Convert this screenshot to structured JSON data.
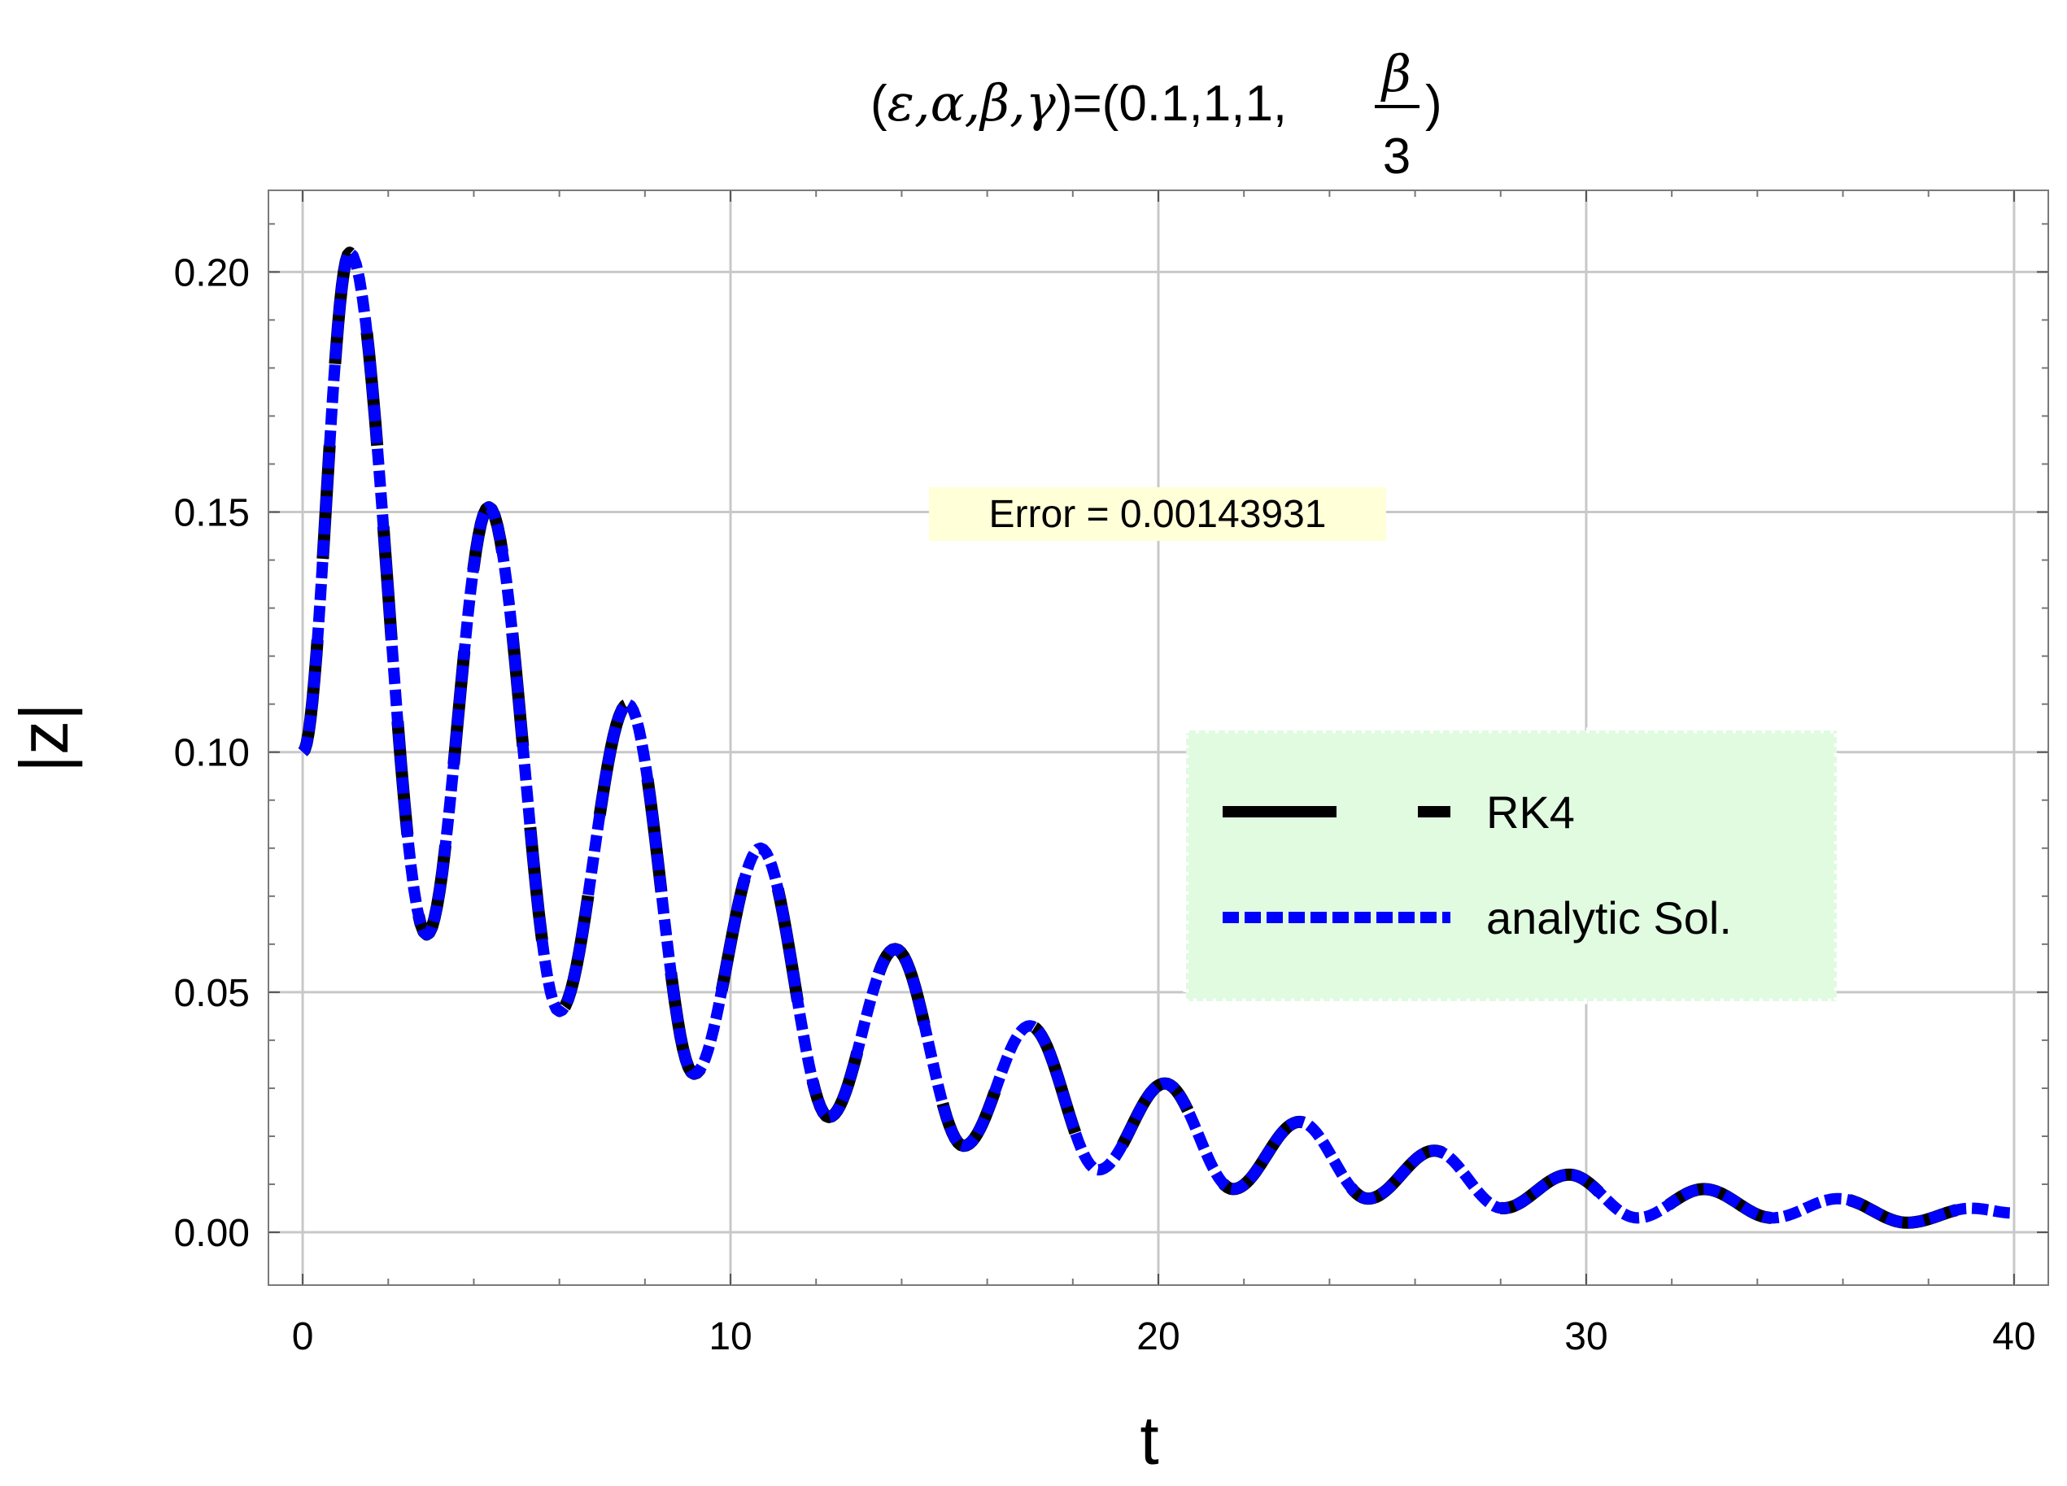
{
  "chart_data": {
    "type": "line",
    "title": {
      "prefix": "(",
      "symbols": "ε,α,β,γ",
      "middle": ")=(0.1,1,1,",
      "fraction_numerator": "β",
      "fraction_denominator": "3",
      "suffix": ")"
    },
    "xlabel": "t",
    "ylabel": "|z|",
    "xlim": [
      -0.8,
      40.8
    ],
    "ylim": [
      -0.011,
      0.217
    ],
    "xticks": [
      0,
      10,
      20,
      30,
      40
    ],
    "xtick_labels": [
      "0",
      "10",
      "20",
      "30",
      "40"
    ],
    "yticks": [
      0.0,
      0.05,
      0.1,
      0.15,
      0.2
    ],
    "ytick_labels": [
      "0.00",
      "0.05",
      "0.10",
      "0.15",
      "0.20"
    ],
    "grid": true,
    "legend_position": "right",
    "annotation": "Error = 0.00143931",
    "series": [
      {
        "name": "RK4",
        "style": "long-dash",
        "color": "#000000",
        "x": [
          0,
          1.1,
          2.9,
          4.35,
          6.0,
          7.6,
          9.15,
          10.7,
          12.3,
          13.85,
          15.45,
          17.0,
          18.6,
          20.15,
          21.75,
          23.3,
          24.9,
          26.45,
          28.05,
          29.6,
          31.2,
          32.75,
          34.35,
          35.9,
          37.5,
          39.0,
          40.0
        ],
        "y": [
          0.1,
          0.204,
          0.062,
          0.151,
          0.046,
          0.11,
          0.033,
          0.08,
          0.024,
          0.059,
          0.018,
          0.043,
          0.013,
          0.031,
          0.009,
          0.023,
          0.007,
          0.017,
          0.005,
          0.012,
          0.003,
          0.009,
          0.003,
          0.007,
          0.002,
          0.005,
          0.004
        ]
      },
      {
        "name": "analytic Sol.",
        "style": "dotted",
        "color": "#0000ff",
        "x": [
          0,
          1.1,
          2.9,
          4.35,
          6.0,
          7.6,
          9.15,
          10.7,
          12.3,
          13.85,
          15.45,
          17.0,
          18.6,
          20.15,
          21.75,
          23.3,
          24.9,
          26.45,
          28.05,
          29.6,
          31.2,
          32.75,
          34.35,
          35.9,
          37.5,
          39.0,
          40.0
        ],
        "y": [
          0.1,
          0.204,
          0.062,
          0.151,
          0.046,
          0.11,
          0.033,
          0.08,
          0.024,
          0.059,
          0.018,
          0.043,
          0.013,
          0.031,
          0.009,
          0.023,
          0.007,
          0.017,
          0.005,
          0.012,
          0.003,
          0.009,
          0.003,
          0.007,
          0.002,
          0.005,
          0.004
        ]
      }
    ]
  },
  "colors": {
    "legend_background": "#e0fbe0",
    "annotation_background": "#ffffd8",
    "grid": "#c8c8c8",
    "frame": "#7a7a7a"
  }
}
